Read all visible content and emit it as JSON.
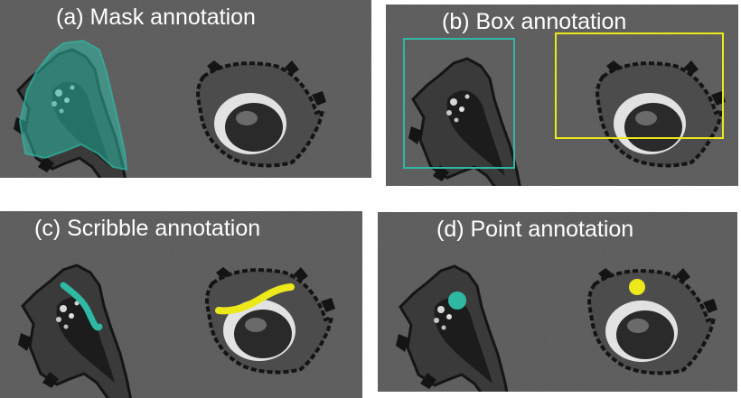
{
  "panels": {
    "a": {
      "title": "(a) Mask annotation"
    },
    "b": {
      "title": "(b) Box annotation"
    },
    "c": {
      "title": "(c) Scribble annotation"
    },
    "d": {
      "title": "(d) Point annotation"
    }
  },
  "colors": {
    "background": "#595959",
    "cell_outline": "#1e1e1e",
    "cell_body": "#2b2b2b",
    "cell_halo": "#cfcfcf",
    "teal": "#2fb8a4",
    "yellow": "#ece81a",
    "title_text": "#ffffff"
  }
}
